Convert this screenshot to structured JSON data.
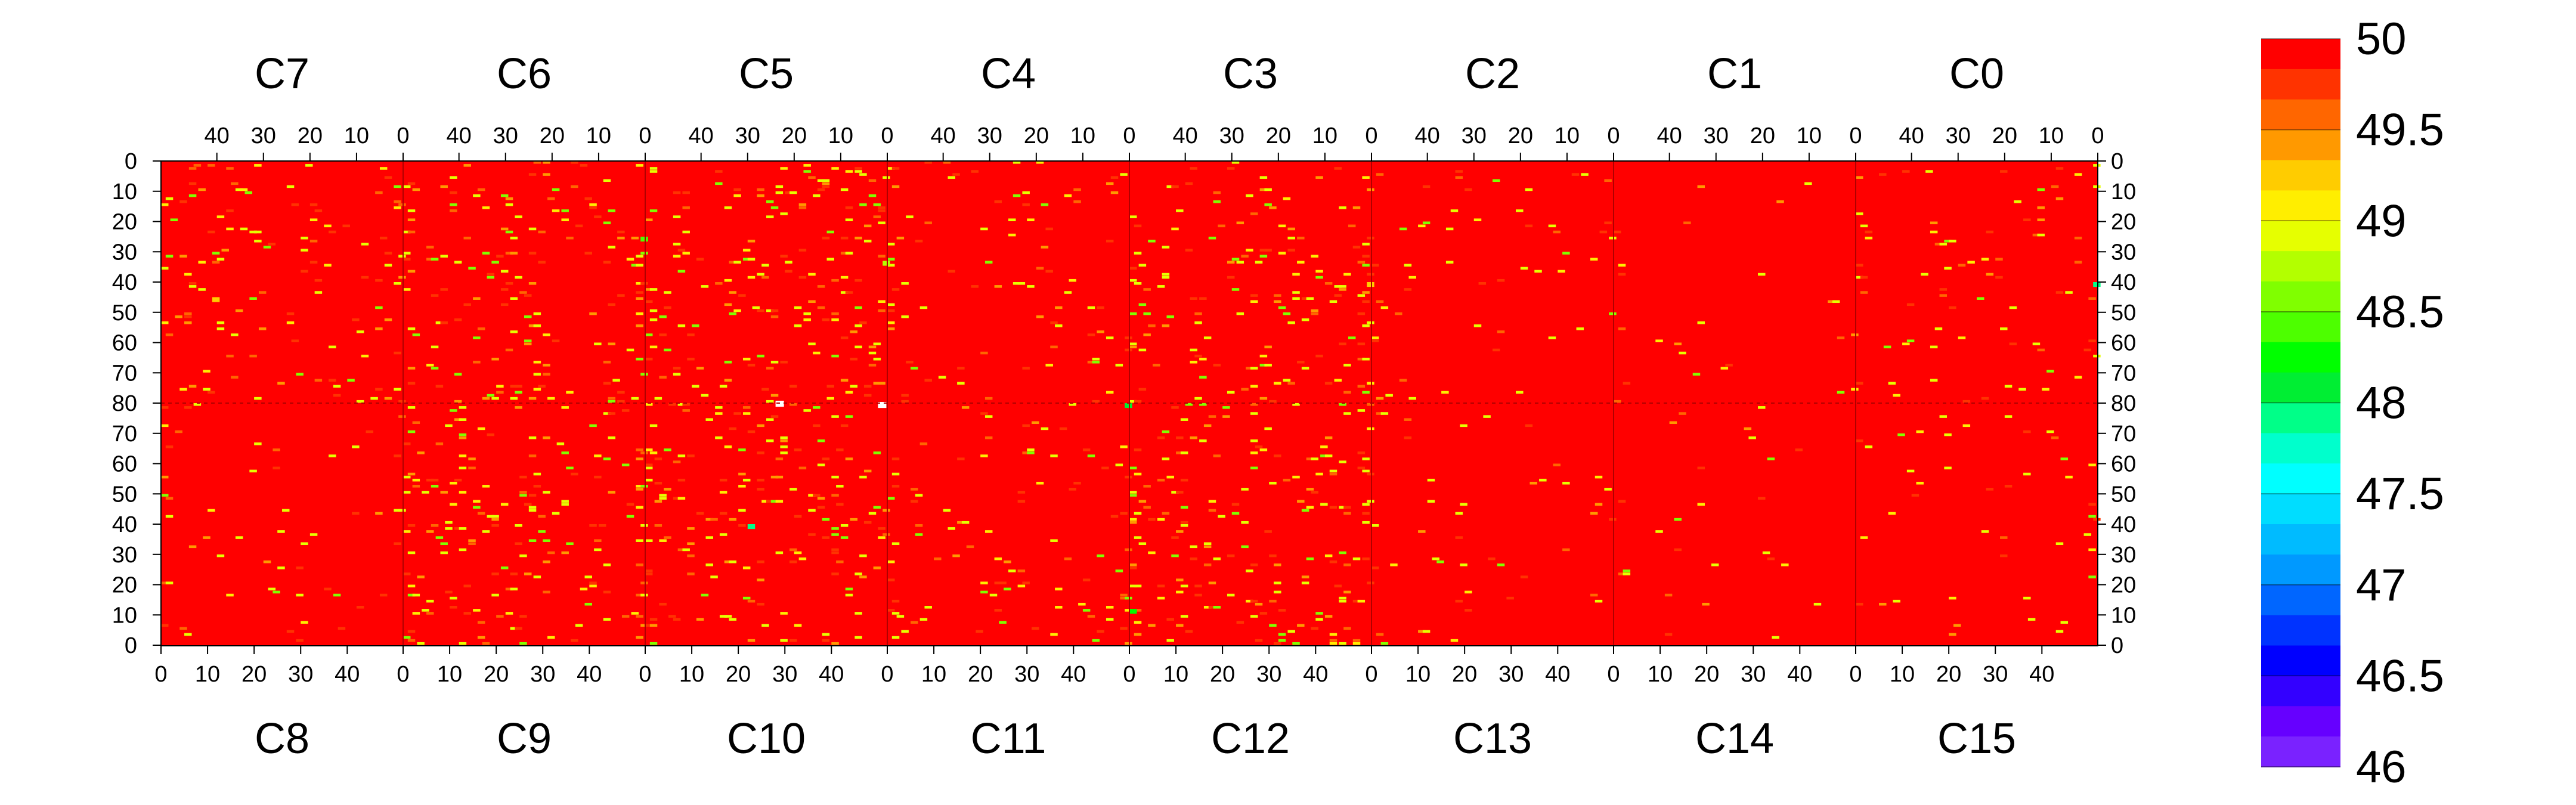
{
  "chart_data": {
    "type": "heatmap",
    "title": "",
    "color_range": [
      46,
      50
    ],
    "colorbar": {
      "tick_labels": [
        "50",
        "49.5",
        "49",
        "48.5",
        "48",
        "47.5",
        "47",
        "46.5",
        "46"
      ],
      "tick_values": [
        50,
        49.5,
        49,
        48.5,
        48,
        47.5,
        47,
        46.5,
        46
      ],
      "colors": [
        "#ff0000",
        "#ff3300",
        "#ff6600",
        "#ff9900",
        "#ffcc00",
        "#ffee00",
        "#e6ff00",
        "#b3ff00",
        "#80ff00",
        "#4dff00",
        "#00ff00",
        "#00ee33",
        "#00ff88",
        "#00ffcc",
        "#00ffff",
        "#00ddff",
        "#00bbff",
        "#0099ff",
        "#0066ff",
        "#0033ff",
        "#0000ff",
        "#3300ff",
        "#6600ff",
        "#7a22ff"
      ]
    },
    "background_value": 50,
    "top_row_chips": [
      "C7",
      "C6",
      "C5",
      "C4",
      "C3",
      "C2",
      "C1",
      "C0"
    ],
    "bottom_row_chips": [
      "C8",
      "C9",
      "C10",
      "C11",
      "C12",
      "C13",
      "C14",
      "C15"
    ],
    "top_x_tick_labels": [
      "40",
      "30",
      "20",
      "10",
      "0"
    ],
    "bottom_x_tick_labels": [
      "0",
      "10",
      "20",
      "30",
      "40"
    ],
    "left_y_tick_labels": [
      "0",
      "10",
      "20",
      "30",
      "40",
      "50",
      "60",
      "70",
      "80",
      "70",
      "60",
      "50",
      "40",
      "30",
      "20",
      "10",
      "0"
    ],
    "right_y_tick_labels": [
      "0",
      "10",
      "20",
      "30",
      "40",
      "50",
      "60",
      "70",
      "80",
      "70",
      "60",
      "50",
      "40",
      "30",
      "20",
      "10",
      "0"
    ],
    "columns_per_chip": 52,
    "rows_per_half": 80,
    "description_of_cells": "Nearly all pixels are at 50 (red); scattered pixels range roughly 48–49.9 (orange/yellow/green); one whitish outlier near C5/C4 border row ~80.",
    "sample_outliers": [
      {
        "chip": "C7",
        "col": 40,
        "row": 45,
        "value": 49.2
      },
      {
        "chip": "C6",
        "col": 0,
        "row": 25,
        "value": 48.4
      },
      {
        "chip": "C5",
        "col": 0,
        "row": 33,
        "value": 48.8
      },
      {
        "chip": "C4",
        "col": 0,
        "row": 80,
        "value": 48.1
      },
      {
        "chip": "C3",
        "col": 0,
        "row": 40,
        "value": 49.2
      },
      {
        "chip": "C0",
        "col": 0,
        "row": 40,
        "value": 48.0
      },
      {
        "chip": "C10",
        "col": 22,
        "row": 40,
        "value": 48.0
      },
      {
        "chip": "C12",
        "col": 0,
        "row": 12,
        "value": 48.3
      }
    ]
  }
}
